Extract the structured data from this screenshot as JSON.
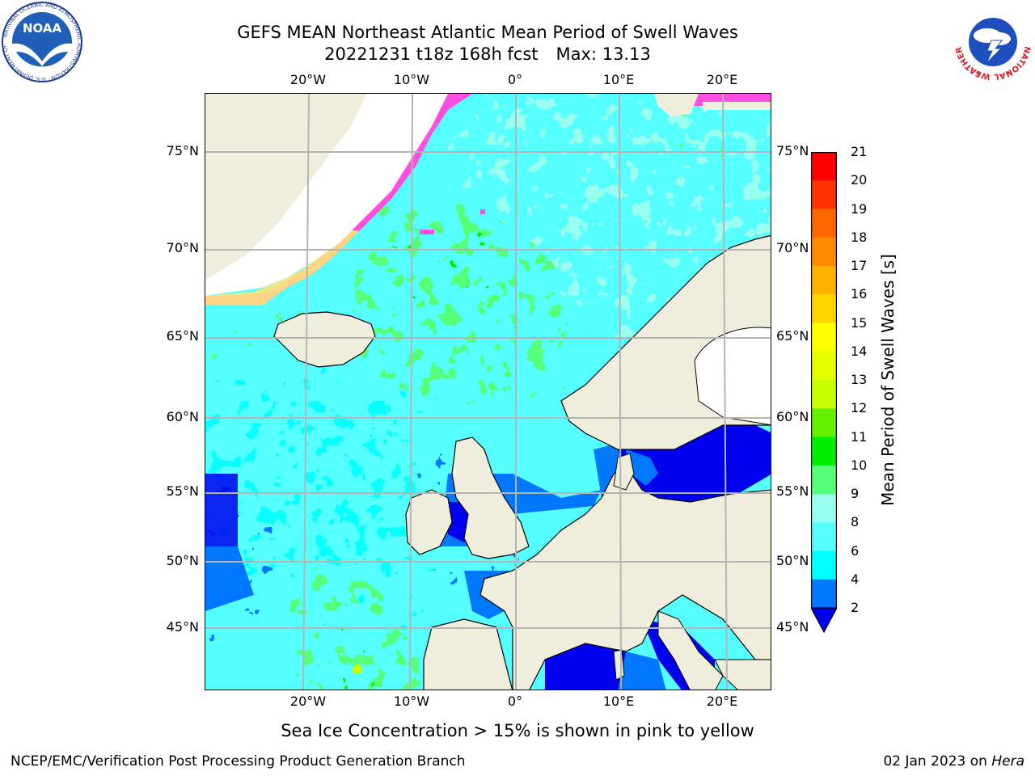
{
  "title": {
    "line1": "GEFS MEAN Northeast Atlantic Mean Period of Swell Waves",
    "line2_run": "20221231 t18z 168h fcst",
    "line2_max": "Max: 13.13"
  },
  "logos": {
    "left": {
      "name": "noaa-logo",
      "text": "NOAA",
      "ring_text": "NATIONAL OCEANIC AND ATMOSPHERIC ADMINISTRATION · U.S. DEPARTMENT OF COMMERCE"
    },
    "right": {
      "name": "nws-logo",
      "ring_text": "NATIONAL WEATHER SERVICE"
    }
  },
  "map": {
    "lon_labels": [
      "20°W",
      "10°W",
      "0°",
      "10°E",
      "20°E"
    ],
    "lat_labels": [
      "75°N",
      "70°N",
      "65°N",
      "60°N",
      "55°N",
      "50°N",
      "45°N"
    ],
    "colors": {
      "land": "#efeddc",
      "ice_pink": "#ff4fe0",
      "ice_yellow": "#ffe27a",
      "grid": "#b4b4b4"
    }
  },
  "colorbar": {
    "label": "Mean Period of Swell Waves [s]",
    "ticks": [
      "21",
      "20",
      "19",
      "18",
      "17",
      "16",
      "15",
      "14",
      "13",
      "12",
      "11",
      "10",
      "9",
      "8",
      "6",
      "4",
      "2"
    ],
    "colors_top_to_bottom": [
      "#ff0000",
      "#ff3300",
      "#ff6600",
      "#ff8c00",
      "#ffb300",
      "#ffd700",
      "#ffff00",
      "#e6ff00",
      "#c8ff00",
      "#66ee00",
      "#00ee00",
      "#55ff77",
      "#99ffee",
      "#55ffff",
      "#00ffff",
      "#0077ff"
    ],
    "extend_color": "#0000ee"
  },
  "note": "Sea Ice Concentration > 15% is shown in pink to yellow",
  "footer": {
    "left": "NCEP/EMC/Verification Post Processing Product Generation Branch",
    "right_date": "02 Jan 2023 on",
    "right_host": "Hera"
  }
}
